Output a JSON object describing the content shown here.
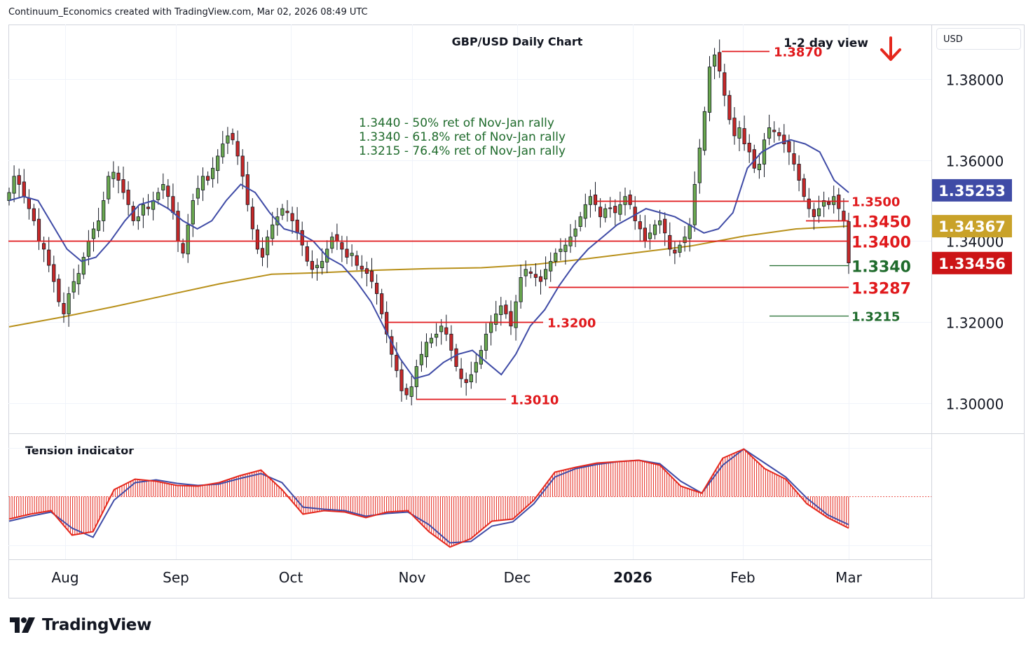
{
  "header": {
    "attribution": "Continuum_Economics created with TradingView.com, Mar 02, 2026 08:49 UTC"
  },
  "chart_data": [
    {
      "type": "candlestick",
      "title": "GBP/USD Daily Chart",
      "view": {
        "label": "1-2 day view",
        "direction": "down",
        "arrow_color": "#e5271c"
      },
      "currency": "USD",
      "y_ticks": [
        "1.38000",
        "1.36000",
        "1.34000",
        "1.32000",
        "1.30000"
      ],
      "ylim": [
        1.2925,
        1.3935
      ],
      "x_ticks": [
        "Aug",
        "Sep",
        "Oct",
        "Nov",
        "Dec",
        "2026",
        "Feb",
        "Mar"
      ],
      "price_tags": [
        {
          "label": "1.35253",
          "value": 1.35253,
          "bg": "#3f4ba6"
        },
        {
          "label": "1.34367",
          "value": 1.34367,
          "bg": "#c9a229"
        },
        {
          "label": "1.33456",
          "value": 1.33456,
          "bg": "#cc1416"
        }
      ],
      "annotations": [
        "1.3440 - 50% ret of Nov-Jan rally",
        "1.3340 - 61.8% ret of Nov-Jan rally",
        "1.3215 - 76.4% ret of Nov-Jan rally"
      ],
      "levels": [
        {
          "label": "1.3870",
          "value": 1.387,
          "color": "#e0191c",
          "type": "resistance"
        },
        {
          "label": "1.3500",
          "value": 1.35,
          "color": "#e0191c",
          "type": "resistance"
        },
        {
          "label": "1.3450",
          "value": 1.345,
          "color": "#e0191c",
          "type": "resistance"
        },
        {
          "label": "1.3400",
          "value": 1.34,
          "color": "#e0191c",
          "type": "resistance"
        },
        {
          "label": "1.3340",
          "value": 1.334,
          "color": "#1f6b2c",
          "type": "retracement"
        },
        {
          "label": "1.3287",
          "value": 1.3287,
          "color": "#e0191c",
          "type": "support"
        },
        {
          "label": "1.3215",
          "value": 1.3215,
          "color": "#1f6b2c",
          "type": "retracement"
        },
        {
          "label": "1.3200",
          "value": 1.32,
          "color": "#e0191c",
          "type": "support"
        },
        {
          "label": "1.3010",
          "value": 1.301,
          "color": "#e0191c",
          "type": "support"
        }
      ],
      "series": [
        {
          "name": "",
          "kind": "closes_approx",
          "color": "#131722",
          "values": [
            1.352,
            1.356,
            1.354,
            1.351,
            1.348,
            1.345,
            1.34,
            1.338,
            1.334,
            1.33,
            1.325,
            1.322,
            1.327,
            1.33,
            1.332,
            1.336,
            1.34,
            1.343,
            1.345,
            1.35,
            1.356,
            1.357,
            1.355,
            1.352,
            1.349,
            1.345,
            1.346,
            1.349,
            1.348,
            1.35,
            1.352,
            1.354,
            1.351,
            1.347,
            1.34,
            1.337,
            1.344,
            1.35,
            1.353,
            1.356,
            1.355,
            1.358,
            1.361,
            1.364,
            1.366,
            1.365,
            1.361,
            1.356,
            1.349,
            1.343,
            1.338,
            1.336,
            1.341,
            1.344,
            1.346,
            1.348,
            1.347,
            1.345,
            1.342,
            1.339,
            1.335,
            1.333,
            1.334,
            1.335,
            1.338,
            1.341,
            1.34,
            1.338,
            1.336,
            1.337,
            1.334,
            1.333,
            1.332,
            1.33,
            1.327,
            1.322,
            1.317,
            1.312,
            1.308,
            1.303,
            1.302,
            1.304,
            1.309,
            1.312,
            1.315,
            1.316,
            1.317,
            1.319,
            1.317,
            1.313,
            1.309,
            1.306,
            1.305,
            1.307,
            1.31,
            1.313,
            1.317,
            1.32,
            1.322,
            1.324,
            1.322,
            1.319,
            1.325,
            1.331,
            1.333,
            1.332,
            1.331,
            1.33,
            1.333,
            1.335,
            1.337,
            1.338,
            1.339,
            1.341,
            1.343,
            1.346,
            1.349,
            1.351,
            1.349,
            1.346,
            1.348,
            1.348,
            1.347,
            1.349,
            1.351,
            1.349,
            1.345,
            1.343,
            1.34,
            1.342,
            1.344,
            1.345,
            1.342,
            1.338,
            1.337,
            1.339,
            1.341,
            1.344,
            1.354,
            1.363,
            1.372,
            1.383,
            1.386,
            1.382,
            1.376,
            1.37,
            1.366,
            1.368,
            1.364,
            1.362,
            1.358,
            1.359,
            1.365,
            1.368,
            1.367,
            1.366,
            1.364,
            1.362,
            1.359,
            1.355,
            1.351,
            1.348,
            1.346,
            1.348,
            1.35,
            1.349,
            1.351,
            1.348,
            1.345,
            1.3346
          ]
        },
        {
          "name": "",
          "kind": "moving_average_short",
          "color": "#3f4ba6",
          "values": [
            1.35,
            1.351,
            1.35,
            1.344,
            1.338,
            1.335,
            1.336,
            1.34,
            1.345,
            1.349,
            1.35,
            1.348,
            1.345,
            1.343,
            1.345,
            1.35,
            1.354,
            1.352,
            1.347,
            1.343,
            1.342,
            1.34,
            1.336,
            1.334,
            1.33,
            1.325,
            1.318,
            1.311,
            1.306,
            1.307,
            1.31,
            1.312,
            1.313,
            1.31,
            1.307,
            1.312,
            1.319,
            1.323,
            1.329,
            1.334,
            1.338,
            1.341,
            1.344,
            1.346,
            1.348,
            1.347,
            1.346,
            1.344,
            1.342,
            1.343,
            1.347,
            1.358,
            1.362,
            1.364,
            1.365,
            1.364,
            1.362,
            1.355,
            1.352
          ]
        },
        {
          "name": "",
          "kind": "moving_average_long",
          "color": "#b8901a",
          "values": [
            1.3188,
            1.3212,
            1.3238,
            1.3266,
            1.3294,
            1.3318,
            1.3322,
            1.3328,
            1.3332,
            1.3334,
            1.3342,
            1.3356,
            1.3372,
            1.3388,
            1.3412,
            1.343,
            1.3437
          ]
        }
      ],
      "legend": "none",
      "grid": true
    },
    {
      "type": "area",
      "title": "Tension Indicator",
      "series": [
        {
          "name": "",
          "color": "#e5271c",
          "fill": "hatched",
          "values": [
            -0.32,
            -0.25,
            -0.2,
            -0.55,
            -0.5,
            0.1,
            0.25,
            0.22,
            0.16,
            0.15,
            0.2,
            0.3,
            0.38,
            0.1,
            -0.25,
            -0.2,
            -0.22,
            -0.3,
            -0.22,
            -0.2,
            -0.5,
            -0.72,
            -0.6,
            -0.35,
            -0.32,
            -0.05,
            0.35,
            0.42,
            0.48,
            0.5,
            0.52,
            0.45,
            0.15,
            0.05,
            0.55,
            0.68,
            0.4,
            0.25,
            -0.1,
            -0.3,
            -0.45
          ]
        },
        {
          "name": "",
          "color": "#3f4ba6",
          "fill": "none",
          "values": [
            -0.35,
            -0.28,
            -0.22,
            -0.45,
            -0.58,
            -0.05,
            0.2,
            0.24,
            0.19,
            0.16,
            0.18,
            0.26,
            0.33,
            0.2,
            -0.15,
            -0.18,
            -0.2,
            -0.28,
            -0.24,
            -0.22,
            -0.4,
            -0.66,
            -0.64,
            -0.42,
            -0.36,
            -0.1,
            0.28,
            0.4,
            0.46,
            0.5,
            0.52,
            0.47,
            0.22,
            0.05,
            0.45,
            0.68,
            0.48,
            0.28,
            -0.02,
            -0.26,
            -0.4
          ]
        }
      ]
    }
  ],
  "footer": {
    "brand": "TradingView"
  }
}
